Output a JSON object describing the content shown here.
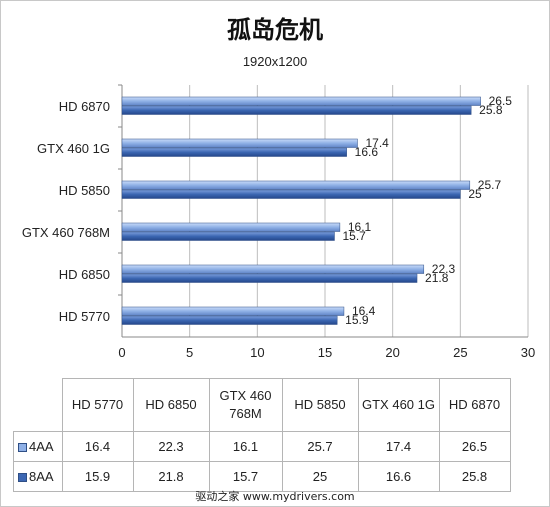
{
  "chart_data": {
    "type": "bar",
    "orientation": "horizontal",
    "title": "孤岛危机",
    "subtitle": "1920x1200",
    "categories": [
      "HD 6870",
      "GTX 460 1G",
      "HD 5850",
      "GTX 460 768M",
      "HD 6850",
      "HD 5770"
    ],
    "series": [
      {
        "name": "4AA",
        "values": [
          26.5,
          17.4,
          25.7,
          16.1,
          22.3,
          16.4
        ],
        "color": "#8fb0e6"
      },
      {
        "name": "8AA",
        "values": [
          25.8,
          16.6,
          25,
          15.7,
          21.8,
          15.9
        ],
        "color": "#3c67b3"
      }
    ],
    "xlim": [
      0,
      30
    ],
    "xticks": [
      0,
      5,
      10,
      15,
      20,
      25,
      30
    ],
    "grid": true,
    "legend": "data-table",
    "table": {
      "columns": [
        "HD 5770",
        "HD 6850",
        "GTX 460 768M",
        "HD 5850",
        "GTX 460 1G",
        "HD 6870"
      ],
      "header_lines": [
        [
          "HD 5770"
        ],
        [
          "HD 6850"
        ],
        [
          "GTX 460",
          "768M"
        ],
        [
          "HD 5850"
        ],
        [
          "GTX 460 1G"
        ],
        [
          "HD 6870"
        ]
      ],
      "rows": [
        {
          "series": "4AA",
          "values": [
            "16.4",
            "22.3",
            "16.1",
            "25.7",
            "17.4",
            "26.5"
          ]
        },
        {
          "series": "8AA",
          "values": [
            "15.9",
            "21.8",
            "15.7",
            "25",
            "16.6",
            "25.8"
          ]
        }
      ]
    }
  },
  "footer": "驱动之家    www.mydrivers.com"
}
